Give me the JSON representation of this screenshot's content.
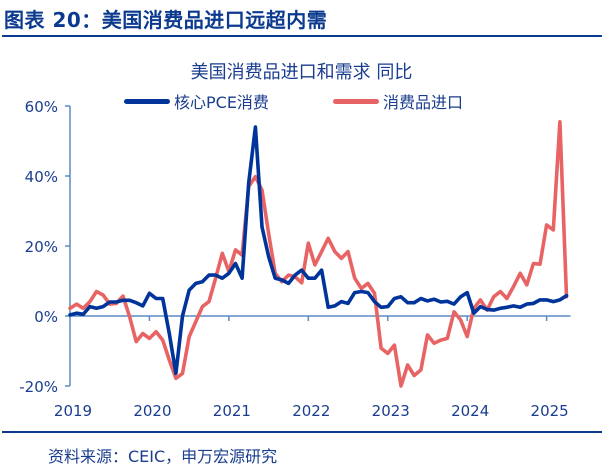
{
  "figure_title": "图表 20：美国消费品进口远超内需",
  "source": "资料来源：CEIC，申万宏源研究",
  "colors": {
    "pce": "#00349a",
    "imports": "#e86464",
    "axis": "#5b8ac6",
    "text": "#1a3d8f"
  },
  "chart_data": {
    "type": "line",
    "title": "美国消费品进口和需求 同比",
    "xlabel": "",
    "ylabel": "",
    "ylim": [
      -20,
      60
    ],
    "yticks": [
      "-20%",
      "0%",
      "20%",
      "40%",
      "60%"
    ],
    "ytick_values": [
      -20,
      0,
      20,
      40,
      60
    ],
    "xtick_labels": [
      "2019",
      "2020",
      "2021",
      "2022",
      "2023",
      "2024",
      "2025"
    ],
    "legend_position": "top",
    "grid": false,
    "x": [
      "2019-01",
      "2019-02",
      "2019-03",
      "2019-04",
      "2019-05",
      "2019-06",
      "2019-07",
      "2019-08",
      "2019-09",
      "2019-10",
      "2019-11",
      "2019-12",
      "2020-01",
      "2020-02",
      "2020-03",
      "2020-04",
      "2020-05",
      "2020-06",
      "2020-07",
      "2020-08",
      "2020-09",
      "2020-10",
      "2020-11",
      "2020-12",
      "2021-01",
      "2021-02",
      "2021-03",
      "2021-04",
      "2021-05",
      "2021-06",
      "2021-07",
      "2021-08",
      "2021-09",
      "2021-10",
      "2021-11",
      "2021-12",
      "2022-01",
      "2022-02",
      "2022-03",
      "2022-04",
      "2022-05",
      "2022-06",
      "2022-07",
      "2022-08",
      "2022-09",
      "2022-10",
      "2022-11",
      "2022-12",
      "2023-01",
      "2023-02",
      "2023-03",
      "2023-04",
      "2023-05",
      "2023-06",
      "2023-07",
      "2023-08",
      "2023-09",
      "2023-10",
      "2023-11",
      "2023-12",
      "2024-01",
      "2024-02",
      "2024-03",
      "2024-04",
      "2024-05",
      "2024-06",
      "2024-07",
      "2024-08",
      "2024-09",
      "2024-10",
      "2024-11",
      "2024-12",
      "2025-01",
      "2025-02",
      "2025-03",
      "2025-04"
    ],
    "series": [
      {
        "name": "核心PCE消费",
        "color": "#00349a",
        "values": [
          0.3,
          0.8,
          0.5,
          2.7,
          2.2,
          2.7,
          4.0,
          4.0,
          4.5,
          4.5,
          3.8,
          2.9,
          6.5,
          5.0,
          5.0,
          -5.0,
          -16.4,
          0.0,
          7.4,
          9.3,
          9.8,
          11.7,
          11.7,
          10.8,
          12.2,
          15.0,
          10.8,
          38.0,
          54.0,
          25.5,
          17.0,
          10.8,
          10.3,
          9.3,
          11.7,
          13.1,
          10.8,
          10.8,
          13.1,
          2.5,
          2.9,
          4.1,
          3.6,
          6.7,
          7.0,
          6.7,
          4.1,
          2.5,
          2.7,
          5.0,
          5.5,
          3.8,
          3.8,
          5.0,
          4.3,
          4.8,
          4.0,
          4.2,
          3.4,
          5.5,
          6.7,
          0.8,
          2.7,
          1.9,
          1.7,
          2.2,
          2.5,
          2.9,
          2.5,
          3.4,
          3.6,
          4.6,
          4.6,
          4.1,
          4.6,
          5.8
        ]
      },
      {
        "name": "消费品进口",
        "color": "#e86464",
        "values": [
          2.2,
          3.4,
          2.2,
          4.1,
          7.0,
          6.0,
          3.4,
          3.6,
          5.7,
          -0.2,
          -7.3,
          -5.0,
          -6.4,
          -4.5,
          -6.9,
          -12.6,
          -17.8,
          -16.4,
          -5.9,
          -1.6,
          2.7,
          4.1,
          10.8,
          17.9,
          12.7,
          18.9,
          17.4,
          37.0,
          39.8,
          36.0,
          23.6,
          12.2,
          9.8,
          11.7,
          11.2,
          9.5,
          20.8,
          14.6,
          18.4,
          22.2,
          18.4,
          16.5,
          18.4,
          10.8,
          7.9,
          9.3,
          6.5,
          -9.2,
          -10.7,
          -8.3,
          -20.0,
          -14.0,
          -17.0,
          -15.4,
          -5.4,
          -7.8,
          -6.9,
          -6.4,
          1.2,
          -1.1,
          -5.9,
          2.2,
          4.6,
          1.7,
          5.5,
          7.0,
          5.0,
          8.4,
          12.2,
          8.9,
          15.0,
          14.8,
          26.0,
          24.6,
          55.5,
          5.5
        ]
      }
    ]
  }
}
